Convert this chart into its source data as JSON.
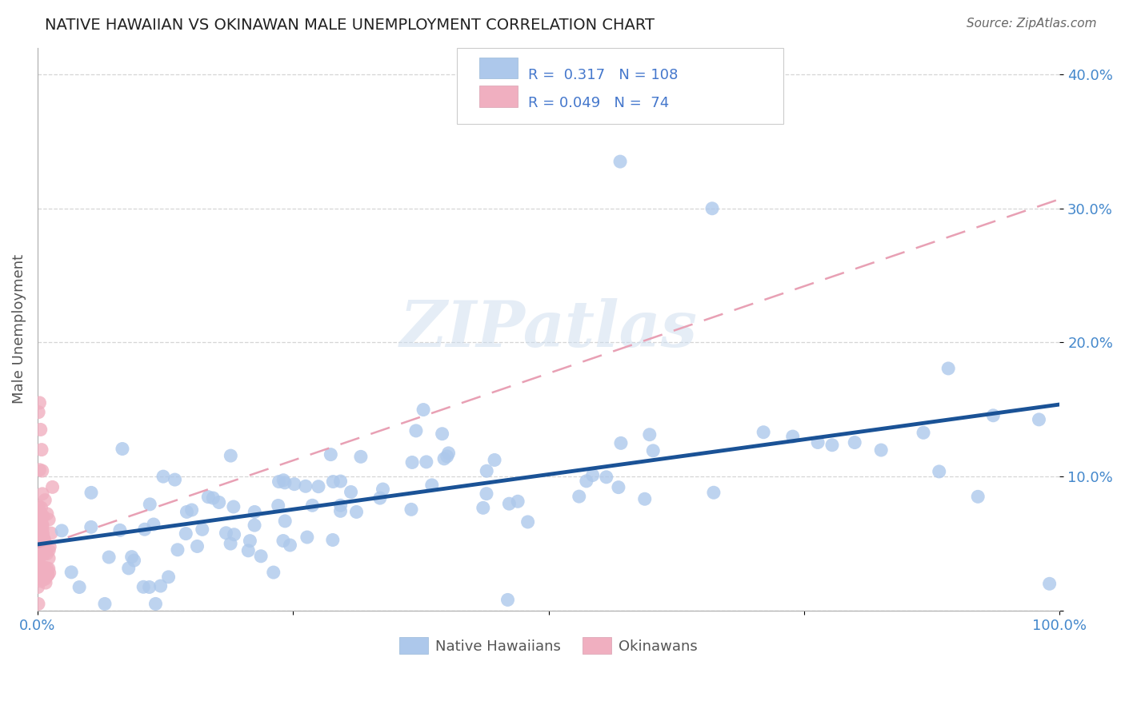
{
  "title": "NATIVE HAWAIIAN VS OKINAWAN MALE UNEMPLOYMENT CORRELATION CHART",
  "source": "Source: ZipAtlas.com",
  "ylabel": "Male Unemployment",
  "xlim": [
    0.0,
    1.0
  ],
  "ylim": [
    0.0,
    0.42
  ],
  "nh_R": 0.317,
  "nh_N": 108,
  "ok_R": 0.049,
  "ok_N": 74,
  "nh_color": "#adc8eb",
  "ok_color": "#f0afc0",
  "nh_line_color": "#1a5296",
  "ok_line_color": "#e8a0b4",
  "watermark": "ZIPatlas",
  "background_color": "#ffffff",
  "grid_color": "#cccccc",
  "title_color": "#222222",
  "axis_label_color": "#555555",
  "tick_label_color": "#4488cc",
  "legend_text_color": "#4477cc",
  "legend_border_color": "#dddddd",
  "spine_color": "#aaaaaa"
}
